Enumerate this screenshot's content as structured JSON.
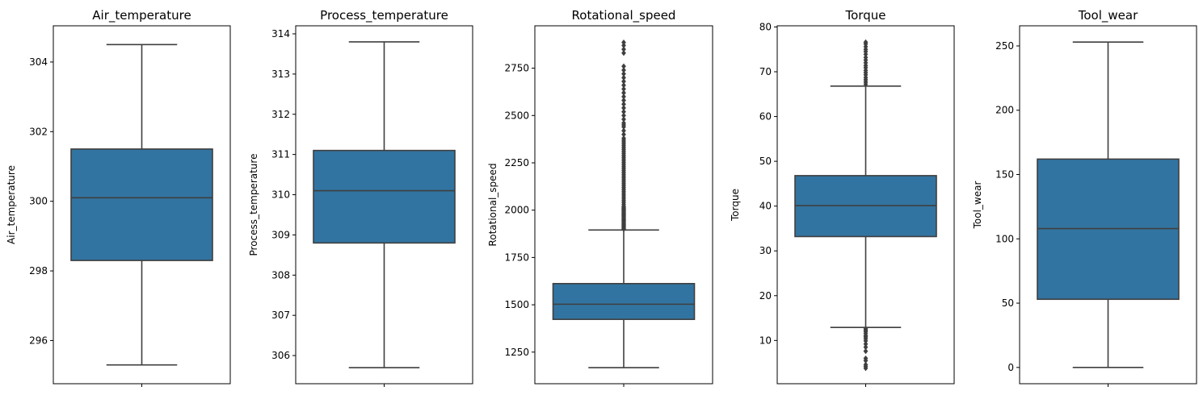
{
  "chart_data": [
    {
      "type": "box",
      "title": "Air_temperature",
      "ylabel": "Air_temperature",
      "xlabel": "",
      "ylim": [
        294.76,
        305.04
      ],
      "yticks": [
        296,
        298,
        300,
        302,
        304
      ],
      "box": {
        "whislo": 295.3,
        "q1": 298.3,
        "med": 300.1,
        "q3": 301.5,
        "whishi": 304.5
      },
      "fliers": []
    },
    {
      "type": "box",
      "title": "Process_temperature",
      "ylabel": "Process_temperature",
      "xlabel": "",
      "ylim": [
        305.3,
        314.2
      ],
      "yticks": [
        306,
        307,
        308,
        309,
        310,
        311,
        312,
        313,
        314
      ],
      "box": {
        "whislo": 305.7,
        "q1": 308.8,
        "med": 310.1,
        "q3": 311.1,
        "whishi": 313.8
      },
      "fliers": []
    },
    {
      "type": "box",
      "title": "Rotational_speed",
      "ylabel": "Rotational_speed",
      "xlabel": "",
      "ylim": [
        1083,
        2974
      ],
      "yticks": [
        1250,
        1500,
        1750,
        2000,
        2250,
        2500,
        2750
      ],
      "box": {
        "whislo": 1168,
        "q1": 1423,
        "med": 1503,
        "q3": 1612,
        "whishi": 1895
      },
      "fliers": [
        1900,
        1905,
        1910,
        1915,
        1920,
        1925,
        1930,
        1935,
        1940,
        1945,
        1950,
        1955,
        1960,
        1965,
        1970,
        1975,
        1980,
        1985,
        1990,
        1995,
        2000,
        2005,
        2010,
        2015,
        2020,
        2030,
        2040,
        2050,
        2060,
        2070,
        2080,
        2090,
        2100,
        2110,
        2120,
        2130,
        2140,
        2150,
        2160,
        2170,
        2180,
        2190,
        2200,
        2210,
        2220,
        2230,
        2240,
        2250,
        2260,
        2270,
        2280,
        2290,
        2300,
        2310,
        2320,
        2330,
        2340,
        2350,
        2360,
        2370,
        2380,
        2400,
        2420,
        2440,
        2450,
        2460,
        2480,
        2500,
        2520,
        2540,
        2560,
        2580,
        2600,
        2620,
        2640,
        2660,
        2680,
        2700,
        2720,
        2740,
        2760,
        2830,
        2850,
        2870,
        2886
      ]
    },
    {
      "type": "box",
      "title": "Torque",
      "ylabel": "Torque",
      "xlabel": "",
      "ylim": [
        0.34,
        80.26
      ],
      "yticks": [
        10,
        20,
        30,
        40,
        50,
        60,
        70,
        80
      ],
      "box": {
        "whislo": 12.9,
        "q1": 33.2,
        "med": 40.1,
        "q3": 46.8,
        "whishi": 66.8
      },
      "fliers": [
        3.8,
        4.2,
        4.6,
        5.5,
        6.0,
        7.6,
        8.5,
        9.2,
        9.9,
        10.4,
        10.8,
        11.1,
        11.6,
        12.0,
        12.3,
        12.6,
        67.2,
        67.7,
        68.2,
        68.7,
        69.3,
        69.8,
        70.3,
        70.9,
        71.4,
        72.0,
        72.6,
        73.2,
        73.9,
        74.5,
        75.0,
        75.6,
        76.2,
        76.6
      ]
    },
    {
      "type": "box",
      "title": "Tool_wear",
      "ylabel": "Tool_wear",
      "xlabel": "",
      "ylim": [
        -12.65,
        265.65
      ],
      "yticks": [
        0,
        50,
        100,
        150,
        200,
        250
      ],
      "box": {
        "whislo": 0,
        "q1": 53,
        "med": 108,
        "q3": 162,
        "whishi": 253
      },
      "fliers": []
    }
  ]
}
